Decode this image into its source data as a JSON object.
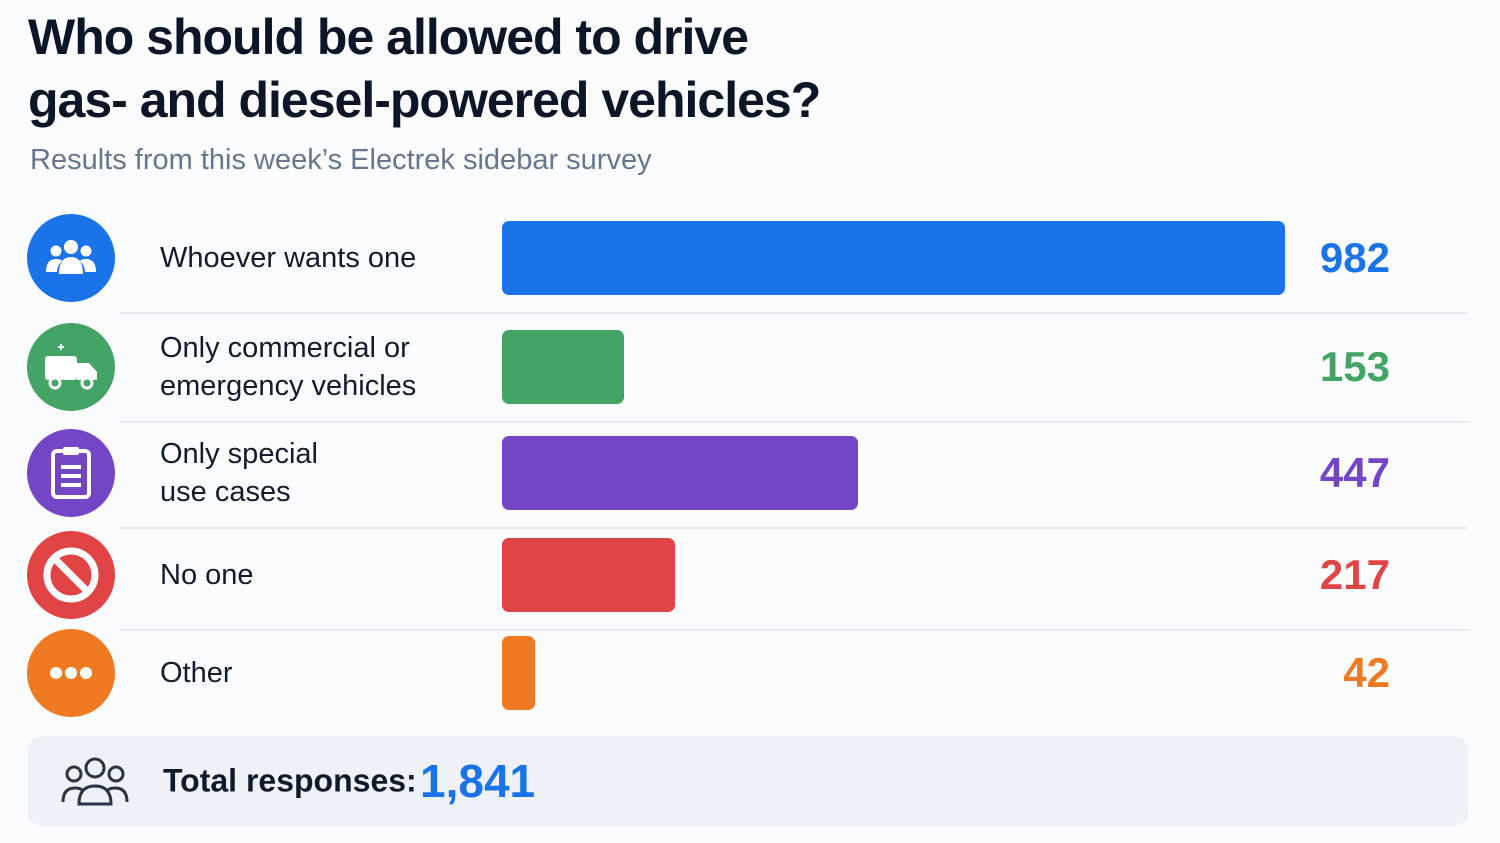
{
  "chart_data": {
    "type": "bar",
    "orientation": "horizontal",
    "title": "Who should be allowed to drive\ngas- and diesel-powered vehicles?",
    "subtitle": "Results from this week’s Electrek sidebar survey",
    "categories": [
      "Whoever wants one",
      "Only commercial or\nemergency vehicles",
      "Only special\nuse cases",
      "No one",
      "Other"
    ],
    "values": [
      982,
      153,
      447,
      217,
      42
    ],
    "colors": [
      "#1a73e8",
      "#43a466",
      "#7246c4",
      "#e04444",
      "#f07a22"
    ],
    "total_title": "Total responses:",
    "total": {
      "value": 1841,
      "label": "1,841"
    },
    "total_color": "#1a73e8"
  }
}
